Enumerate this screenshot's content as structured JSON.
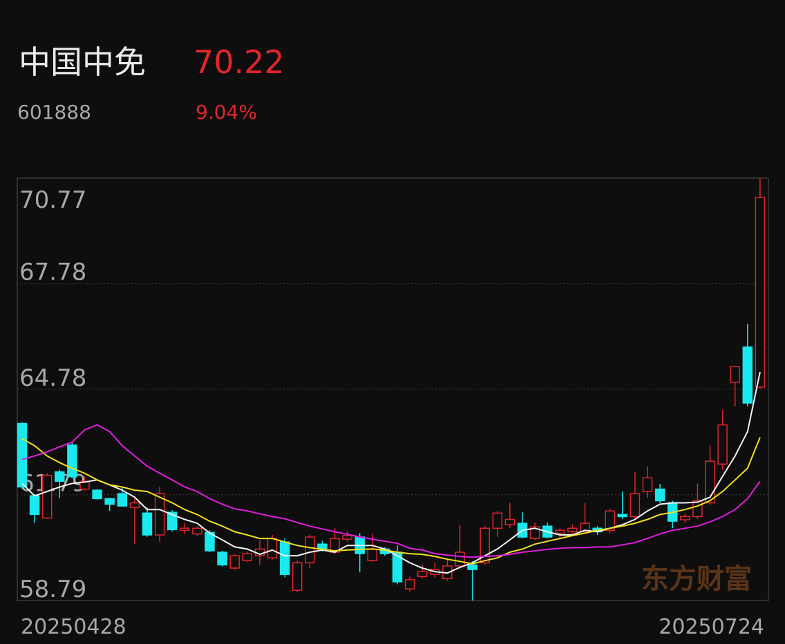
{
  "header": {
    "name": "中国中免",
    "price": "70.22",
    "code": "601888",
    "change": "9.04%"
  },
  "watermark": "东方财富",
  "chart_data": {
    "type": "candlestick",
    "categories": [
      "20250428",
      null,
      null,
      null,
      null,
      null,
      null,
      null,
      null,
      null,
      null,
      null,
      null,
      null,
      null,
      null,
      null,
      null,
      null,
      null,
      null,
      null,
      null,
      null,
      null,
      null,
      null,
      null,
      null,
      null,
      null,
      null,
      null,
      null,
      null,
      null,
      null,
      null,
      null,
      null,
      null,
      null,
      null,
      null,
      null,
      null,
      null,
      null,
      null,
      null,
      null,
      null,
      null,
      null,
      null,
      null,
      null,
      null,
      null,
      "20250724"
    ],
    "open": [
      63.81,
      61.76,
      61.13,
      62.44,
      63.2,
      61.95,
      61.92,
      61.68,
      61.82,
      61.43,
      61.27,
      60.65,
      61.29,
      60.78,
      60.68,
      60.72,
      60.16,
      59.71,
      59.92,
      60.06,
      60.0,
      60.45,
      59.08,
      59.86,
      60.39,
      60.16,
      60.53,
      60.59,
      59.92,
      60.25,
      60.16,
      59.12,
      59.47,
      59.53,
      59.41,
      59.77,
      59.8,
      59.86,
      60.84,
      60.94,
      60.98,
      60.55,
      60.9,
      60.7,
      60.74,
      60.74,
      60.84,
      60.78,
      61.23,
      61.17,
      61.88,
      61.95,
      61.56,
      61.08,
      61.17,
      61.56,
      62.66,
      64.98,
      65.98,
      64.84
    ],
    "high": [
      63.85,
      61.8,
      62.4,
      62.5,
      63.3,
      62.3,
      61.95,
      61.7,
      62.01,
      61.68,
      61.43,
      62.01,
      61.35,
      60.98,
      60.9,
      60.78,
      60.2,
      60.1,
      60.18,
      60.49,
      60.65,
      60.55,
      59.92,
      60.65,
      60.49,
      60.84,
      60.75,
      60.7,
      60.68,
      60.3,
      60.35,
      59.47,
      59.8,
      59.86,
      59.96,
      60.94,
      59.9,
      60.9,
      61.33,
      61.56,
      61.29,
      61.0,
      61.0,
      60.84,
      60.94,
      61.56,
      60.9,
      61.4,
      61.88,
      62.44,
      62.6,
      62.1,
      61.62,
      61.25,
      62.11,
      63.18,
      64.2,
      65.45,
      66.64,
      70.77
    ],
    "low": [
      61.95,
      60.99,
      61.1,
      61.7,
      62.25,
      61.9,
      61.65,
      61.33,
      61.45,
      60.39,
      60.6,
      60.45,
      60.75,
      60.68,
      60.62,
      60.16,
      59.75,
      59.67,
      59.88,
      59.8,
      59.95,
      59.45,
      59.02,
      59.7,
      60.18,
      60.1,
      60.45,
      59.59,
      59.88,
      60.06,
      59.25,
      59.04,
      59.42,
      59.45,
      59.35,
      59.7,
      58.79,
      59.8,
      60.6,
      60.85,
      60.55,
      60.5,
      60.55,
      60.55,
      60.65,
      60.7,
      60.65,
      60.7,
      61.1,
      61.1,
      61.7,
      61.55,
      60.84,
      61.0,
      61.1,
      61.5,
      62.5,
      64.3,
      64.3,
      64.8
    ],
    "close": [
      62.01,
      61.23,
      62.34,
      62.17,
      62.3,
      62.17,
      61.68,
      61.52,
      61.47,
      61.56,
      60.65,
      61.82,
      60.8,
      60.84,
      60.84,
      60.2,
      59.8,
      60.06,
      60.12,
      60.25,
      60.55,
      59.53,
      59.86,
      60.59,
      60.25,
      60.55,
      60.63,
      60.12,
      60.25,
      60.12,
      59.32,
      59.38,
      59.61,
      59.67,
      59.77,
      60.16,
      59.67,
      60.84,
      61.27,
      61.09,
      60.59,
      60.88,
      60.59,
      60.78,
      60.84,
      60.98,
      60.74,
      61.33,
      61.17,
      61.82,
      62.27,
      61.62,
      61.04,
      61.17,
      61.62,
      62.74,
      63.77,
      65.43,
      64.39,
      70.22
    ],
    "up_color": "#e0262c",
    "down_color": "#19e8ee",
    "series": [
      {
        "color": "#f4f4f4",
        "values": [
          62.11,
          61.76,
          61.88,
          62.01,
          62.11,
          62.15,
          62.21,
          62.07,
          61.92,
          61.72,
          61.37,
          61.37,
          61.23,
          61.09,
          60.98,
          60.7,
          60.51,
          60.31,
          60.25,
          60.1,
          60.22,
          60.06,
          60.06,
          60.16,
          60.22,
          60.16,
          60.35,
          60.35,
          60.35,
          60.25,
          60.06,
          59.86,
          59.71,
          59.61,
          59.57,
          59.73,
          59.86,
          60.06,
          60.25,
          60.51,
          60.78,
          60.84,
          60.74,
          60.65,
          60.65,
          60.78,
          60.74,
          60.84,
          60.94,
          61.09,
          61.33,
          61.52,
          61.56,
          61.56,
          61.58,
          61.72,
          62.31,
          62.89,
          63.58,
          65.27
        ]
      },
      {
        "color": "#f2e01c",
        "values": [
          63.38,
          63.18,
          62.89,
          62.7,
          62.54,
          62.4,
          62.21,
          62.07,
          62.01,
          61.92,
          61.88,
          61.72,
          61.56,
          61.37,
          61.23,
          61.04,
          60.9,
          60.74,
          60.65,
          60.55,
          60.55,
          60.45,
          60.35,
          60.29,
          60.24,
          60.2,
          60.22,
          60.24,
          60.25,
          60.22,
          60.16,
          60.12,
          60.1,
          60.04,
          59.96,
          59.9,
          59.83,
          59.92,
          60.0,
          60.16,
          60.25,
          60.39,
          60.47,
          60.55,
          60.63,
          60.7,
          60.78,
          60.84,
          60.9,
          60.98,
          61.09,
          61.23,
          61.29,
          61.37,
          61.47,
          61.62,
          61.88,
          62.21,
          62.54,
          63.42
        ]
      },
      {
        "color": "#e21ee0",
        "values": [
          62.79,
          62.89,
          63.01,
          63.15,
          63.28,
          63.63,
          63.77,
          63.58,
          63.18,
          62.89,
          62.6,
          62.4,
          62.21,
          62.01,
          61.88,
          61.68,
          61.52,
          61.39,
          61.33,
          61.25,
          61.17,
          61.11,
          61.0,
          60.9,
          60.82,
          60.74,
          60.67,
          60.59,
          60.53,
          60.47,
          60.41,
          60.27,
          60.22,
          60.12,
          60.08,
          60.04,
          60.02,
          60.04,
          60.06,
          60.1,
          60.16,
          60.2,
          60.24,
          60.27,
          60.29,
          60.29,
          60.31,
          60.31,
          60.37,
          60.43,
          60.55,
          60.68,
          60.78,
          60.84,
          60.9,
          61.02,
          61.17,
          61.37,
          61.68,
          62.17
        ]
      }
    ],
    "ylim": [
      58.79,
      70.77
    ],
    "yticks": [
      58.79,
      61.79,
      64.78,
      67.78,
      70.77
    ],
    "grid": true
  }
}
